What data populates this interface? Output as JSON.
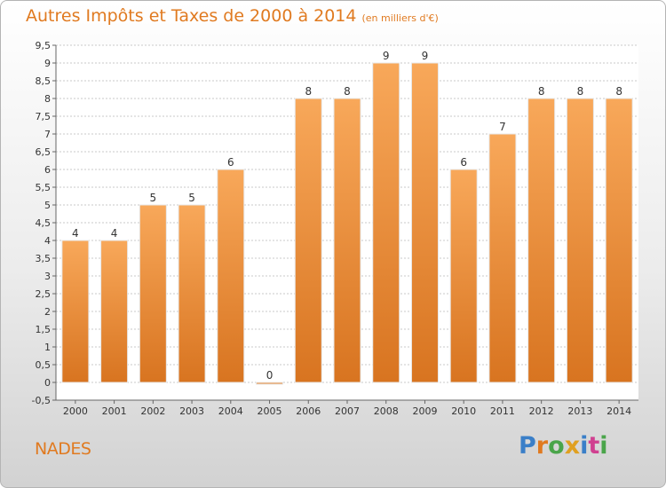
{
  "header": {
    "title": "Autres Impôts et Taxes de 2000 à 2014",
    "unit": "(en milliers d'€)"
  },
  "commune": "NADES",
  "logo": {
    "text": "Proxiti",
    "colors": [
      "#3a7fc8",
      "#e07a20",
      "#4aa54a",
      "#e0a020",
      "#3a7fc8",
      "#d04090",
      "#4aa54a"
    ]
  },
  "chart_data": {
    "type": "bar",
    "title": "Autres Impôts et Taxes de 2000 à 2014",
    "categories": [
      "2000",
      "2001",
      "2002",
      "2003",
      "2004",
      "2005",
      "2006",
      "2007",
      "2008",
      "2009",
      "2010",
      "2011",
      "2012",
      "2013",
      "2014"
    ],
    "values": [
      4,
      4,
      5,
      5,
      6,
      0,
      8,
      8,
      9,
      9,
      6,
      7,
      8,
      8,
      8
    ],
    "data_labels": [
      "4",
      "4",
      "5",
      "5",
      "6",
      "0",
      "8",
      "8",
      "9",
      "9",
      "6",
      "7",
      "8",
      "8",
      "8"
    ],
    "y_ticks": [
      "-0,5",
      "0",
      "0,5",
      "1",
      "1,5",
      "2",
      "2,5",
      "3",
      "3,5",
      "4",
      "4,5",
      "5",
      "5,5",
      "6",
      "6,5",
      "7",
      "7,5",
      "8",
      "8,5",
      "9",
      "9,5"
    ],
    "ylim": [
      -0.5,
      9.5
    ],
    "grid": true,
    "bar_color": "#f0923a",
    "xlabel": "",
    "ylabel": ""
  }
}
